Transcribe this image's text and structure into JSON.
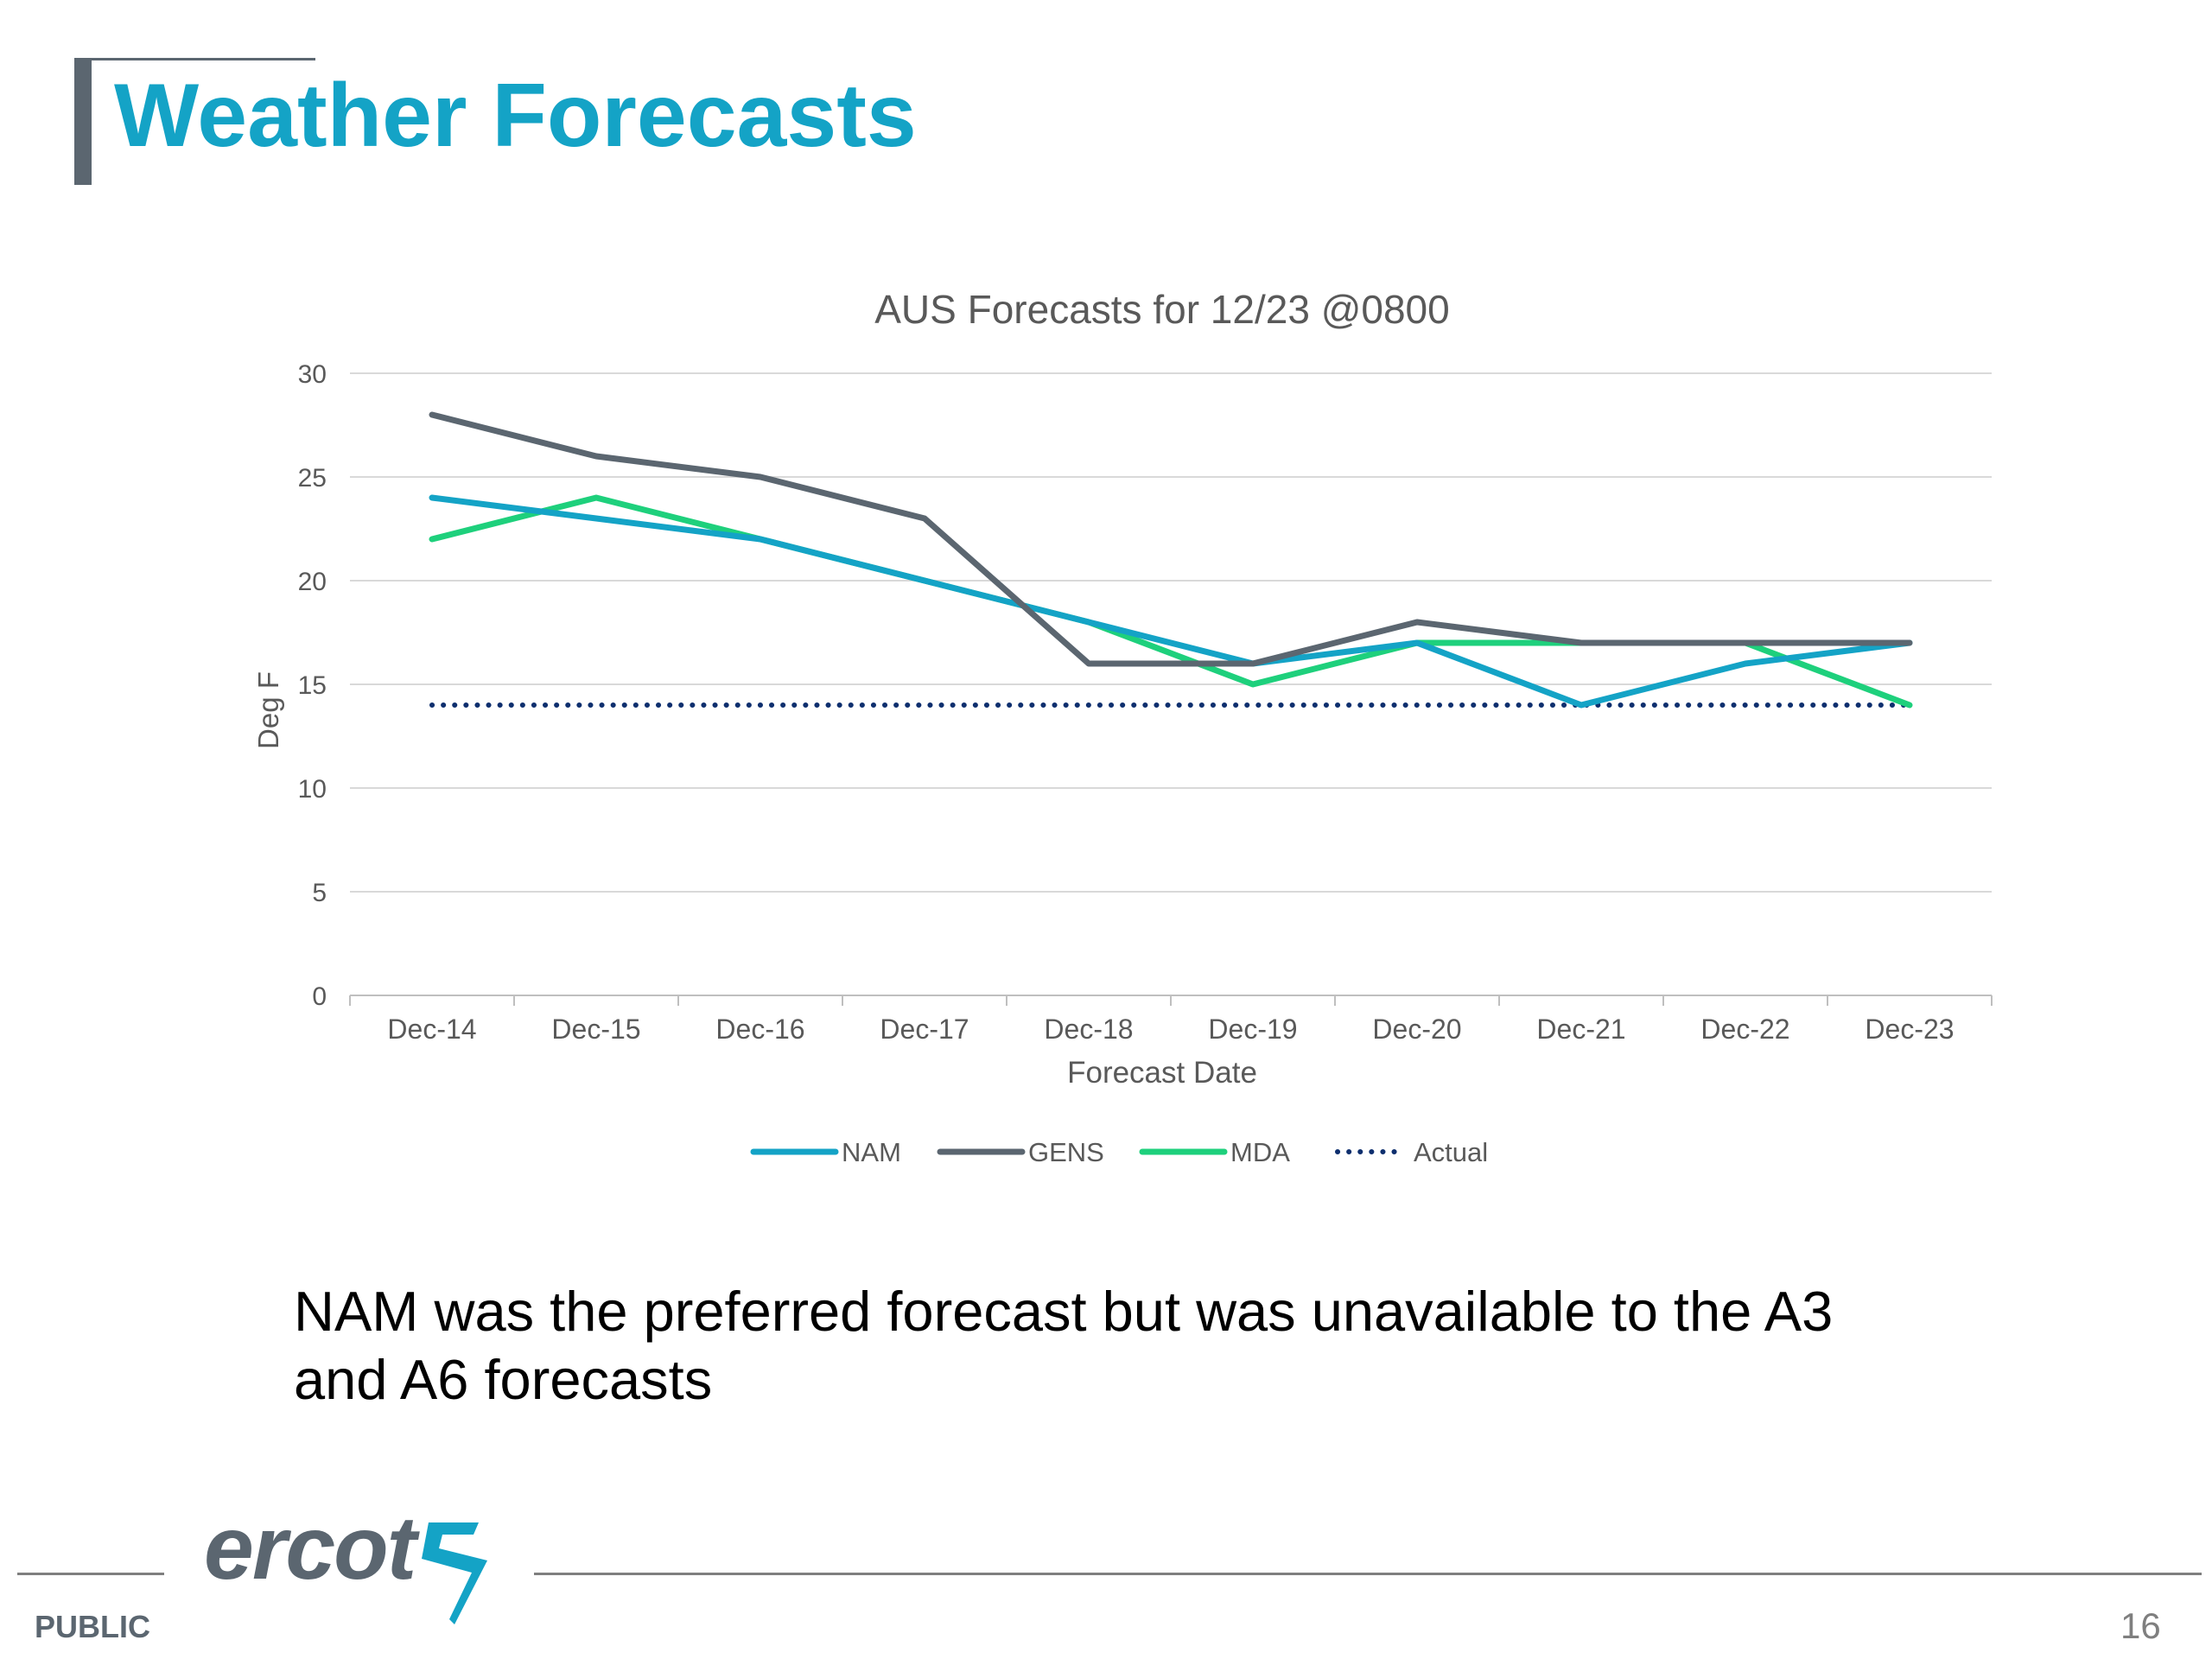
{
  "slide": {
    "title": "Weather Forecasts",
    "caption": "NAM was the preferred forecast but was unavailable to the A3 and A6 forecasts",
    "logo_text": "ercot",
    "classification": "PUBLIC",
    "page_number": "16",
    "colors": {
      "title": "#14a3c6",
      "accent_gray": "#5b6670"
    }
  },
  "chart_data": {
    "type": "line",
    "title": "AUS Forecasts for 12/23 @0800",
    "xlabel": "Forecast Date",
    "ylabel": "Deg F",
    "ylim": [
      0,
      30
    ],
    "yticks": [
      0,
      5,
      10,
      15,
      20,
      25,
      30
    ],
    "grid": true,
    "legend_position": "bottom",
    "categories": [
      "Dec-14",
      "Dec-15",
      "Dec-16",
      "Dec-17",
      "Dec-18",
      "Dec-19",
      "Dec-20",
      "Dec-21",
      "Dec-22",
      "Dec-23"
    ],
    "series": [
      {
        "name": "NAM",
        "color": "#14a3c6",
        "style": "solid",
        "values": [
          24,
          23,
          22,
          20,
          18,
          16,
          17,
          14,
          16,
          17
        ]
      },
      {
        "name": "GENS",
        "color": "#5b6670",
        "style": "solid",
        "values": [
          28,
          26,
          25,
          23,
          16,
          16,
          18,
          17,
          17,
          17
        ]
      },
      {
        "name": "MDA",
        "color": "#1ed07c",
        "style": "solid",
        "values": [
          22,
          24,
          22,
          20,
          18,
          15,
          17,
          17,
          17,
          14
        ]
      },
      {
        "name": "Actual",
        "color": "#0e2f6e",
        "style": "dotted",
        "values": [
          14,
          14,
          14,
          14,
          14,
          14,
          14,
          14,
          14,
          14
        ]
      }
    ]
  }
}
